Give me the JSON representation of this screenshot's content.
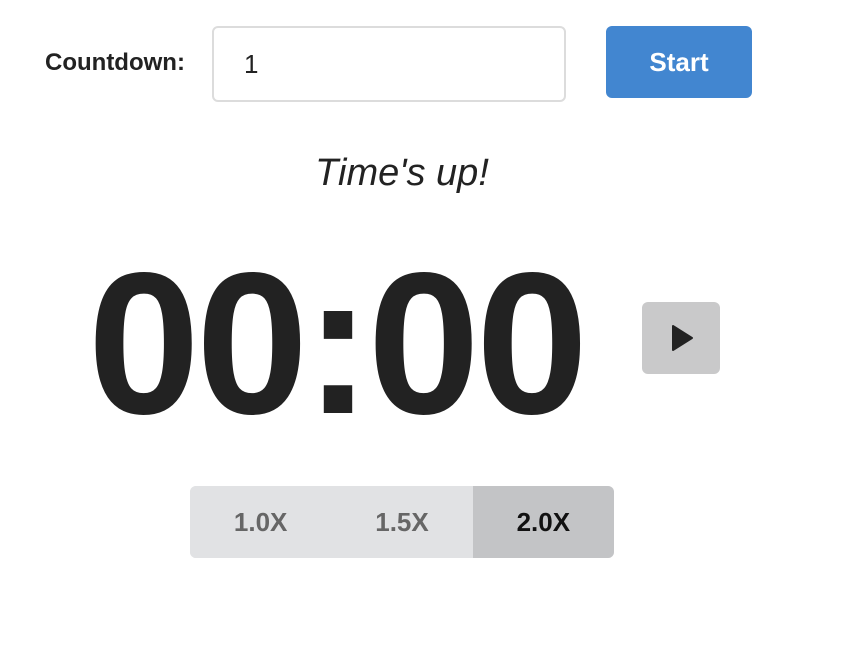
{
  "countdown": {
    "label": "Countdown:",
    "value": "1",
    "start_label": "Start"
  },
  "status": {
    "message": "Time's up!"
  },
  "timer": {
    "display": "00:00",
    "play_icon": "play-icon"
  },
  "speed": {
    "options": [
      {
        "label": "1.0X",
        "selected": false
      },
      {
        "label": "1.5X",
        "selected": false
      },
      {
        "label": "2.0X",
        "selected": true
      }
    ]
  },
  "colors": {
    "start_button": "#4286d0",
    "play_button": "#c9c9ca",
    "speed_bg": "#e1e2e4",
    "speed_active": "#c3c4c6"
  }
}
